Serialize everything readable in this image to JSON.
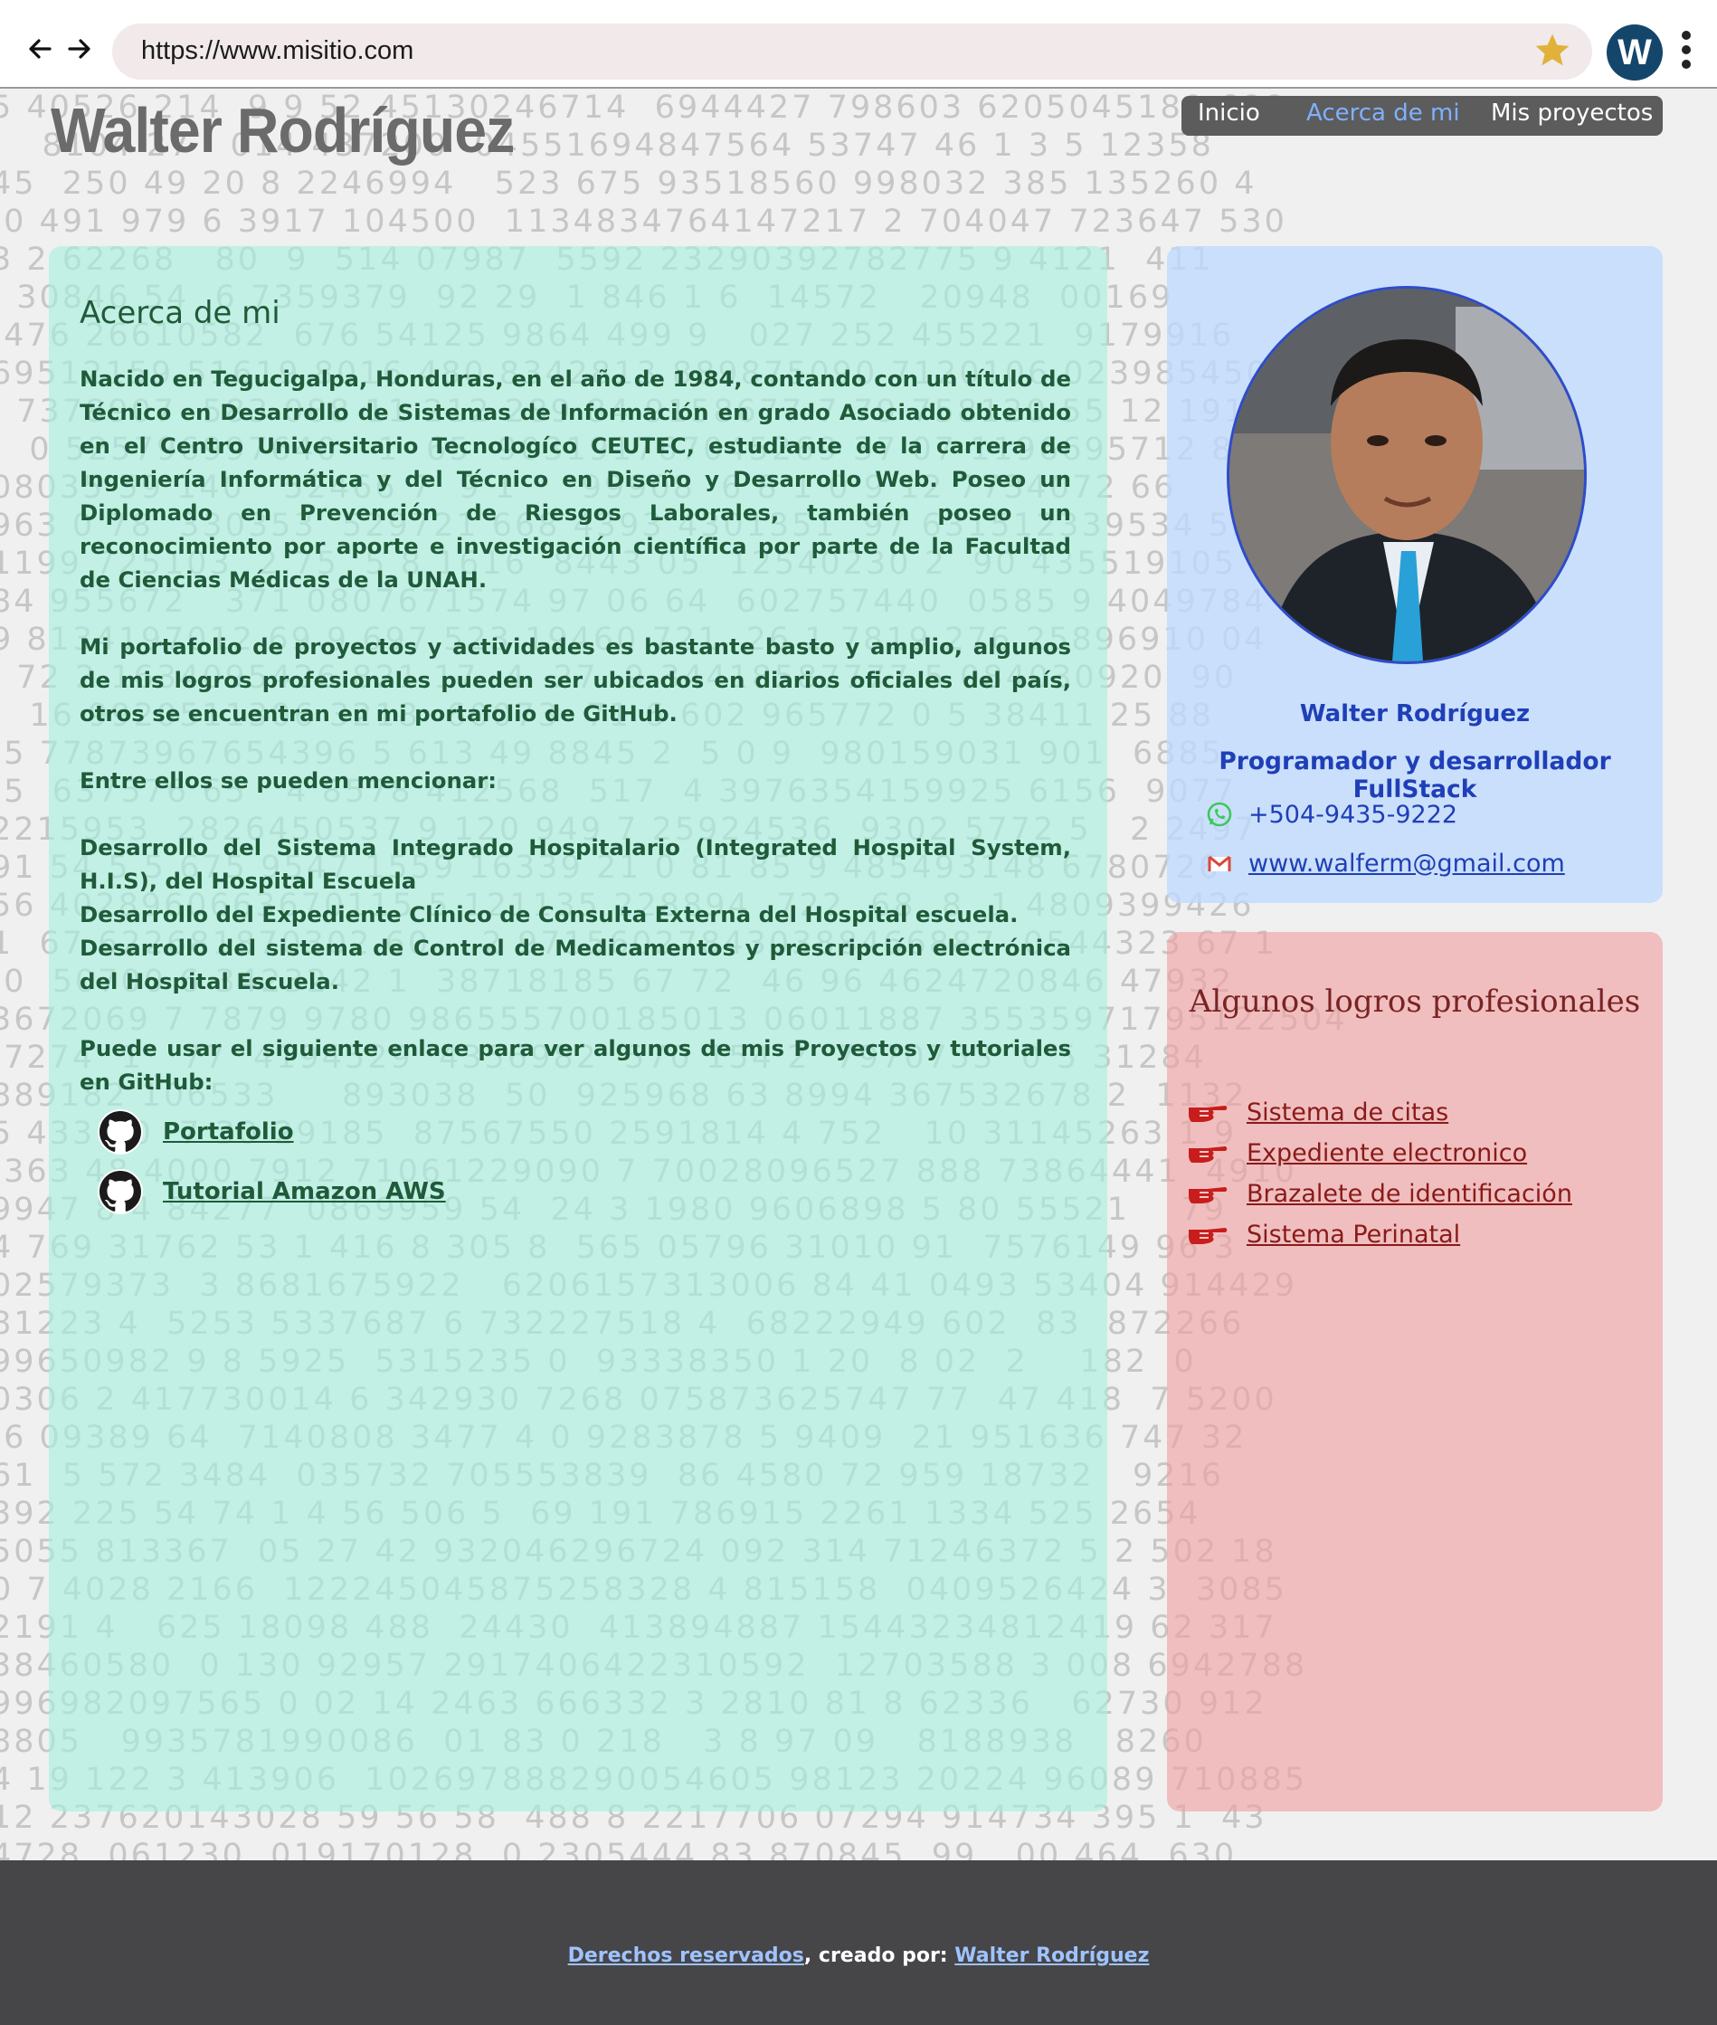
{
  "browser": {
    "url": "https://www.misitio.com",
    "profile_initial": "W"
  },
  "site": {
    "title": "Walter Rodríguez"
  },
  "nav": {
    "items": [
      {
        "label": "Inicio",
        "active": false
      },
      {
        "label": "Acerca de mi",
        "active": true
      },
      {
        "label": "Mis proyectos",
        "active": false
      }
    ]
  },
  "about": {
    "heading": "Acerca de mi",
    "para1": "Nacido en Tegucigalpa, Honduras, en el año de 1984, contando con un título de Técnico en Desarrollo de Sistemas de Información en grado Asociado obtenido en el Centro Universitario Tecnologíco CEUTEC, estudiante de la carrera de Ingeniería Informática y del Técnico en Diseño y Desarrollo Web. Poseo un Diplomado en Prevención de Riesgos Laborales, también poseo un reconocimiento por aporte e investigación científica por parte de la Facultad de Ciencias Médicas de la UNAH.",
    "para2": "Mi portafolio de proyectos y actividades es bastante basto y amplio, algunos de mis logros profesionales pueden ser ubicados en diarios oficiales del país, otros se encuentran en mi portafolio de GitHub.",
    "para3": "Entre ellos se pueden mencionar:",
    "projects": [
      "Desarrollo del Sistema Integrado Hospitalario (Integrated Hospital System, H.I.S), del Hospital Escuela",
      "Desarrollo del Expediente Clínico de Consulta Externa del Hospital escuela.",
      "Desarrollo del sistema de Control de Medicamentos y prescripción electrónica del Hospital Escuela."
    ],
    "para4": "Puede usar el siguiente enlace para ver algunos de mis Proyectos y tutoriales en GitHub:",
    "links": [
      "Portafolio",
      "Tutorial Amazon AWS"
    ]
  },
  "profile": {
    "name": "Walter Rodríguez",
    "role": "Programador y desarrollador FullStack",
    "phone": "+504-9435-9222",
    "email": "www.walferm@gmail.com"
  },
  "achievements": {
    "title": "Algunos logros profesionales",
    "items": [
      "Sistema de citas",
      "Expediente electronico",
      "Brazalete de identificación",
      "Sistema Perinatal"
    ]
  },
  "footer": {
    "rights": "Derechos reservados",
    "created_by": ", creado por: ",
    "author": "Walter Rodríguez"
  },
  "colors": {
    "about_bg": "#a6f0dd",
    "profile_bg": "#bddaff",
    "achievements_bg": "#f0a0a0",
    "nav_active": "#7fb0ff",
    "footer_bg": "#464547"
  }
}
